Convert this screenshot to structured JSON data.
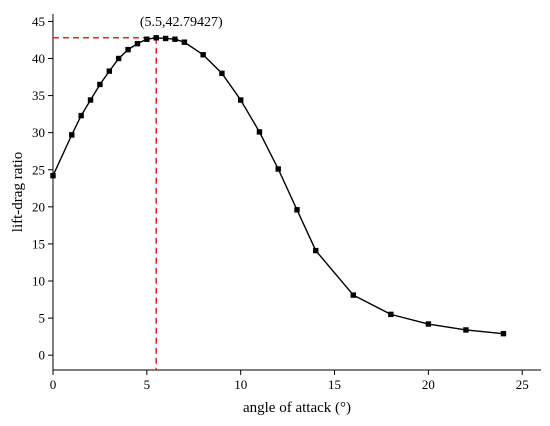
{
  "chart_data": {
    "type": "line",
    "xlabel": "angle of attack (°)",
    "ylabel": "lift-drag ratio",
    "xlim": [
      0,
      26
    ],
    "ylim": [
      -2,
      46
    ],
    "xticks": [
      0,
      5,
      10,
      15,
      20,
      25
    ],
    "yticks": [
      0,
      5,
      10,
      15,
      20,
      25,
      30,
      35,
      40,
      45
    ],
    "grid": false,
    "marker": "square",
    "series_color": "#000000",
    "x": [
      0,
      1,
      1.5,
      2,
      2.5,
      3,
      3.5,
      4,
      4.5,
      5,
      5.5,
      6,
      6.5,
      7,
      8,
      9,
      10,
      11,
      12,
      13,
      14,
      16,
      18,
      20,
      22,
      24
    ],
    "y": [
      24.2,
      29.7,
      32.3,
      34.4,
      36.5,
      38.3,
      40.0,
      41.2,
      42.0,
      42.6,
      42.79427,
      42.7,
      42.6,
      42.2,
      40.5,
      38.0,
      34.4,
      30.1,
      25.1,
      19.6,
      14.1,
      8.1,
      5.5,
      4.2,
      3.4,
      2.9
    ],
    "annotation": {
      "text": "(5.5,42.79427)",
      "x": 5.5,
      "y": 42.79427,
      "line_color": "#e8232a"
    }
  }
}
